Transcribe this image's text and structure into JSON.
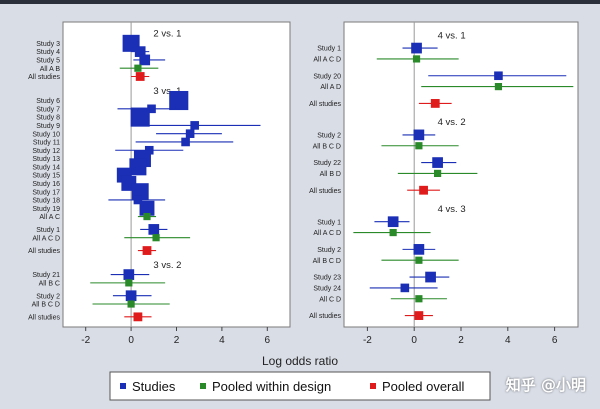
{
  "colors": {
    "background": "#d9dde6",
    "panel": "#ffffff",
    "studies": "#1a2fb5",
    "pooled_within_design": "#2a8a2a",
    "pooled_overall": "#e01b1b"
  },
  "watermark": "知乎 @小明",
  "chart_data": {
    "type": "forest",
    "xlabel": "Log odds ratio",
    "legend": {
      "placement": "bottom",
      "entries": [
        {
          "key": "studies",
          "label": "Studies"
        },
        {
          "key": "pooled_within_design",
          "label": "Pooled within design"
        },
        {
          "key": "pooled_overall",
          "label": "Pooled overall"
        }
      ]
    },
    "panels": [
      {
        "name": "left",
        "xlim": [
          -3,
          7
        ],
        "xticks": [
          -2,
          0,
          2,
          4,
          6
        ],
        "rows": [
          {
            "kind": "title",
            "label": "2 vs. 1"
          },
          {
            "kind": "study",
            "label": "Study 3",
            "est": 0.0,
            "lo": -0.3,
            "hi": 0.3,
            "size": 6
          },
          {
            "kind": "study",
            "label": "Study 4",
            "est": 0.4,
            "lo": 0.0,
            "hi": 0.8,
            "size": 3
          },
          {
            "kind": "study",
            "label": "Study 5",
            "est": 0.6,
            "lo": 0.1,
            "hi": 1.5,
            "size": 3
          },
          {
            "kind": "pooled",
            "label": "All A B",
            "est": 0.3,
            "lo": -0.5,
            "hi": 1.2
          },
          {
            "kind": "overall",
            "label": "All studies",
            "est": 0.4,
            "lo": 0.0,
            "hi": 0.8
          },
          {
            "kind": "gap"
          },
          {
            "kind": "title",
            "label": "3 vs. 1"
          },
          {
            "kind": "study",
            "label": "Study 6",
            "est": 2.1,
            "lo": 1.8,
            "hi": 2.4,
            "size": 7
          },
          {
            "kind": "study",
            "label": "Study 7",
            "est": 0.9,
            "lo": -0.6,
            "hi": 2.2,
            "size": 2
          },
          {
            "kind": "study",
            "label": "Study 8",
            "est": 0.4,
            "lo": 0.1,
            "hi": 0.7,
            "size": 7
          },
          {
            "kind": "study",
            "label": "Study 9",
            "est": 2.8,
            "lo": 0.2,
            "hi": 5.7,
            "size": 2
          },
          {
            "kind": "study",
            "label": "Study 10",
            "est": 2.6,
            "lo": 1.1,
            "hi": 4.0,
            "size": 2
          },
          {
            "kind": "study",
            "label": "Study 11",
            "est": 2.4,
            "lo": 0.2,
            "hi": 4.5,
            "size": 2
          },
          {
            "kind": "study",
            "label": "Study 12",
            "est": 0.8,
            "lo": -0.7,
            "hi": 2.3,
            "size": 2
          },
          {
            "kind": "study",
            "label": "Study 13",
            "est": 0.5,
            "lo": 0.2,
            "hi": 0.8,
            "size": 6
          },
          {
            "kind": "study",
            "label": "Study 14",
            "est": 0.3,
            "lo": 0.0,
            "hi": 0.6,
            "size": 6
          },
          {
            "kind": "study",
            "label": "Study 15",
            "est": -0.3,
            "lo": -0.6,
            "hi": 0.0,
            "size": 5
          },
          {
            "kind": "study",
            "label": "Study 16",
            "est": -0.1,
            "lo": -0.4,
            "hi": 0.2,
            "size": 5
          },
          {
            "kind": "study",
            "label": "Study 17",
            "est": 0.4,
            "lo": 0.1,
            "hi": 0.7,
            "size": 6
          },
          {
            "kind": "study",
            "label": "Study 18",
            "est": 0.3,
            "lo": -1.0,
            "hi": 1.5,
            "size": 2
          },
          {
            "kind": "study",
            "label": "Study 19",
            "est": 0.7,
            "lo": 0.4,
            "hi": 1.0,
            "size": 5
          },
          {
            "kind": "pooled",
            "label": "All A C",
            "est": 0.7,
            "lo": 0.3,
            "hi": 1.1
          },
          {
            "kind": "gap"
          },
          {
            "kind": "study",
            "label": "Study 1",
            "est": 1.0,
            "lo": 0.4,
            "hi": 1.6,
            "size": 3
          },
          {
            "kind": "pooled",
            "label": "All A C D",
            "est": 1.1,
            "lo": -0.3,
            "hi": 2.6
          },
          {
            "kind": "gap"
          },
          {
            "kind": "overall",
            "label": "All studies",
            "est": 0.7,
            "lo": 0.3,
            "hi": 1.1
          },
          {
            "kind": "gap"
          },
          {
            "kind": "title",
            "label": "3 vs. 2"
          },
          {
            "kind": "study",
            "label": "Study 21",
            "est": -0.1,
            "lo": -0.9,
            "hi": 0.8,
            "size": 3
          },
          {
            "kind": "pooled",
            "label": "All B C",
            "est": -0.1,
            "lo": -1.8,
            "hi": 1.5
          },
          {
            "kind": "gap"
          },
          {
            "kind": "study",
            "label": "Study 2",
            "est": 0.0,
            "lo": -0.8,
            "hi": 0.9,
            "size": 3
          },
          {
            "kind": "pooled",
            "label": "All B C D",
            "est": 0.0,
            "lo": -1.7,
            "hi": 1.7
          },
          {
            "kind": "gap"
          },
          {
            "kind": "overall",
            "label": "All studies",
            "est": 0.3,
            "lo": -0.3,
            "hi": 0.9
          }
        ]
      },
      {
        "name": "right",
        "xlim": [
          -3,
          7
        ],
        "xticks": [
          -2,
          0,
          2,
          4,
          6
        ],
        "rows": [
          {
            "kind": "title",
            "label": "4 vs. 1"
          },
          {
            "kind": "study",
            "label": "Study 1",
            "est": 0.1,
            "lo": -0.5,
            "hi": 1.0,
            "size": 3
          },
          {
            "kind": "pooled",
            "label": "All A C D",
            "est": 0.1,
            "lo": -1.6,
            "hi": 1.9
          },
          {
            "kind": "gap"
          },
          {
            "kind": "study",
            "label": "Study 20",
            "est": 3.6,
            "lo": 0.6,
            "hi": 6.5,
            "size": 2
          },
          {
            "kind": "pooled",
            "label": "All A D",
            "est": 3.6,
            "lo": 0.3,
            "hi": 6.8
          },
          {
            "kind": "gap"
          },
          {
            "kind": "overall",
            "label": "All studies",
            "est": 0.9,
            "lo": 0.2,
            "hi": 1.6
          },
          {
            "kind": "gap"
          },
          {
            "kind": "title",
            "label": "4 vs. 2"
          },
          {
            "kind": "study",
            "label": "Study 2",
            "est": 0.2,
            "lo": -0.5,
            "hi": 0.9,
            "size": 3
          },
          {
            "kind": "pooled",
            "label": "All B C D",
            "est": 0.2,
            "lo": -1.4,
            "hi": 1.9
          },
          {
            "kind": "gap"
          },
          {
            "kind": "study",
            "label": "Study 22",
            "est": 1.0,
            "lo": 0.3,
            "hi": 1.8,
            "size": 3
          },
          {
            "kind": "pooled",
            "label": "All B D",
            "est": 1.0,
            "lo": -0.7,
            "hi": 2.7
          },
          {
            "kind": "gap"
          },
          {
            "kind": "overall",
            "label": "All studies",
            "est": 0.4,
            "lo": -0.3,
            "hi": 1.1
          },
          {
            "kind": "gap"
          },
          {
            "kind": "title",
            "label": "4 vs. 3"
          },
          {
            "kind": "study",
            "label": "Study 1",
            "est": -0.9,
            "lo": -1.7,
            "hi": -0.2,
            "size": 3
          },
          {
            "kind": "pooled",
            "label": "All A C D",
            "est": -0.9,
            "lo": -2.6,
            "hi": 0.7
          },
          {
            "kind": "gap"
          },
          {
            "kind": "study",
            "label": "Study 2",
            "est": 0.2,
            "lo": -0.5,
            "hi": 0.9,
            "size": 3
          },
          {
            "kind": "pooled",
            "label": "All B C D",
            "est": 0.2,
            "lo": -1.4,
            "hi": 1.9
          },
          {
            "kind": "gap"
          },
          {
            "kind": "study",
            "label": "Study 23",
            "est": 0.7,
            "lo": -0.2,
            "hi": 1.5,
            "size": 3
          },
          {
            "kind": "study",
            "label": "Study 24",
            "est": -0.4,
            "lo": -1.9,
            "hi": 1.0,
            "size": 2
          },
          {
            "kind": "pooled",
            "label": "All C D",
            "est": 0.2,
            "lo": -1.0,
            "hi": 1.4
          },
          {
            "kind": "gap"
          },
          {
            "kind": "overall",
            "label": "All studies",
            "est": 0.2,
            "lo": -0.4,
            "hi": 0.8
          }
        ]
      }
    ]
  }
}
